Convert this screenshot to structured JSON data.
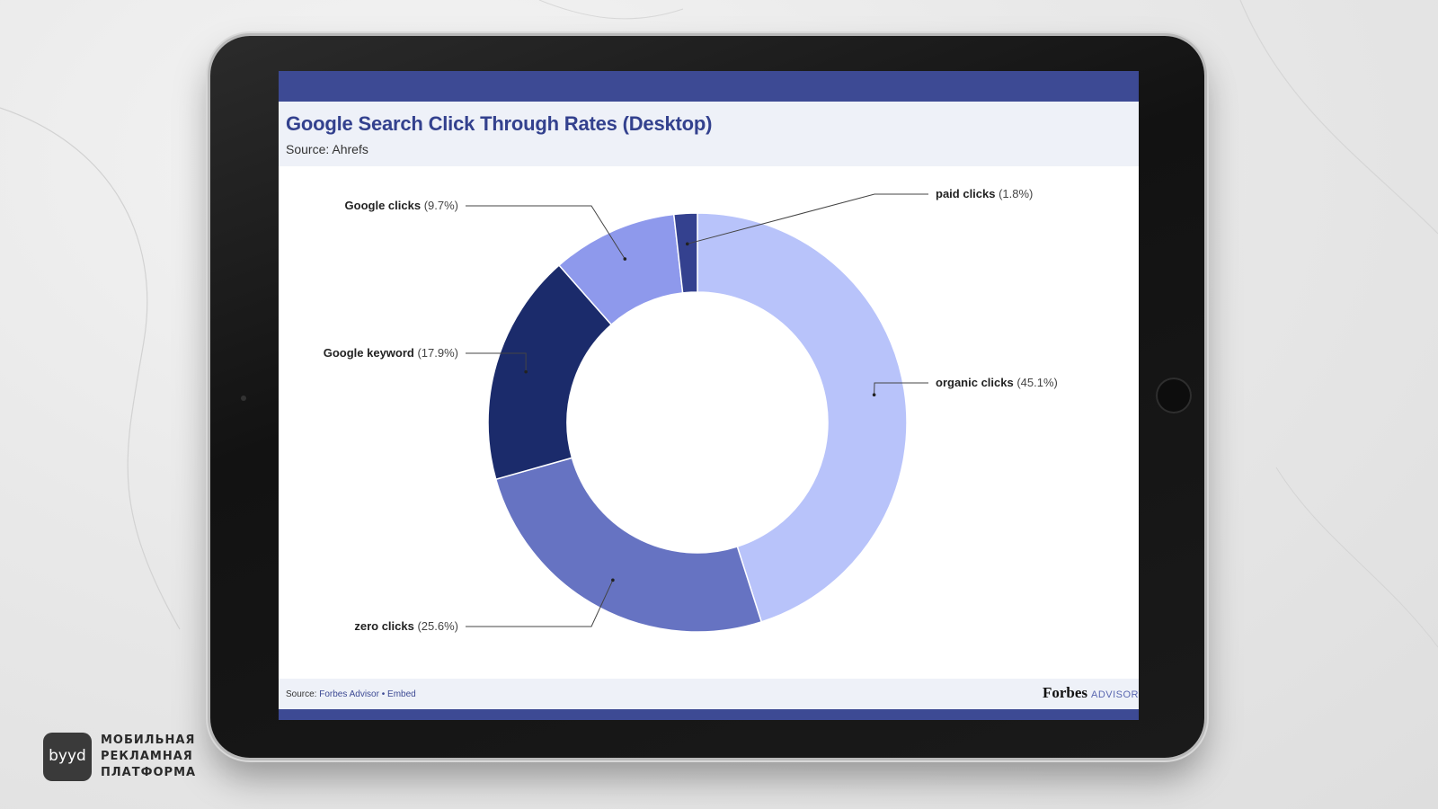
{
  "chart_data": {
    "type": "pie",
    "donut": true,
    "title": "Google Search Click Through Rates (Desktop)",
    "subtitle": "Source: Ahrefs",
    "slices": [
      {
        "label": "organic clicks",
        "value": 45.1,
        "pct_text": "(45.1%)",
        "color": "#b8c3fa"
      },
      {
        "label": "zero clicks",
        "value": 25.6,
        "pct_text": "(25.6%)",
        "color": "#6673c2"
      },
      {
        "label": "Google keyword",
        "value": 17.9,
        "pct_text": "(17.9%)",
        "color": "#1b2b6b"
      },
      {
        "label": "Google clicks",
        "value": 9.7,
        "pct_text": "(9.7%)",
        "color": "#8e99ec"
      },
      {
        "label": "paid clicks",
        "value": 1.8,
        "pct_text": "(1.8%)",
        "color": "#34418f"
      }
    ]
  },
  "footer": {
    "source_prefix": "Source:",
    "source_name": "Forbes Advisor",
    "separator": "•",
    "embed_label": "Embed"
  },
  "brand": {
    "name": "Forbes",
    "suffix": "ADVISOR"
  },
  "watermark": {
    "logo_text": "byyd",
    "lines": [
      "МОБИЛЬНАЯ",
      "РЕКЛАМНАЯ",
      "ПЛАТФОРМА"
    ]
  },
  "colors": {
    "accent": "#3d4a94",
    "header_bg": "#eef1f8",
    "title": "#33418e"
  }
}
